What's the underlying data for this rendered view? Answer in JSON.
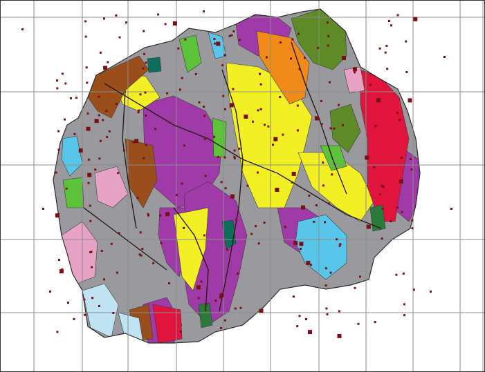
{
  "map": {
    "type": "geological-map",
    "grid": true,
    "grid_color": "#8c8c8c",
    "units": [
      {
        "name": "grey-unit",
        "color": "#9a9a9e"
      },
      {
        "name": "purple-unit",
        "color": "#a03aa8"
      },
      {
        "name": "yellow-unit",
        "color": "#f2f024"
      },
      {
        "name": "brown-unit",
        "color": "#9a4e1c"
      },
      {
        "name": "red-unit",
        "color": "#e0143c"
      },
      {
        "name": "light-blue-unit",
        "color": "#58c6ea"
      },
      {
        "name": "green-unit",
        "color": "#5cc23a"
      },
      {
        "name": "orange-unit",
        "color": "#f08a18"
      },
      {
        "name": "olive-unit",
        "color": "#5e8a28"
      },
      {
        "name": "pink-unit",
        "color": "#e7a3c6"
      },
      {
        "name": "teal-unit",
        "color": "#0e6e5e"
      },
      {
        "name": "dark-green-unit",
        "color": "#2a7a3a"
      },
      {
        "name": "pale-blue-unit",
        "color": "#bfe3f2"
      }
    ],
    "symbol_colors": {
      "station": "#7a1014",
      "fault": "#2a1a14"
    }
  }
}
